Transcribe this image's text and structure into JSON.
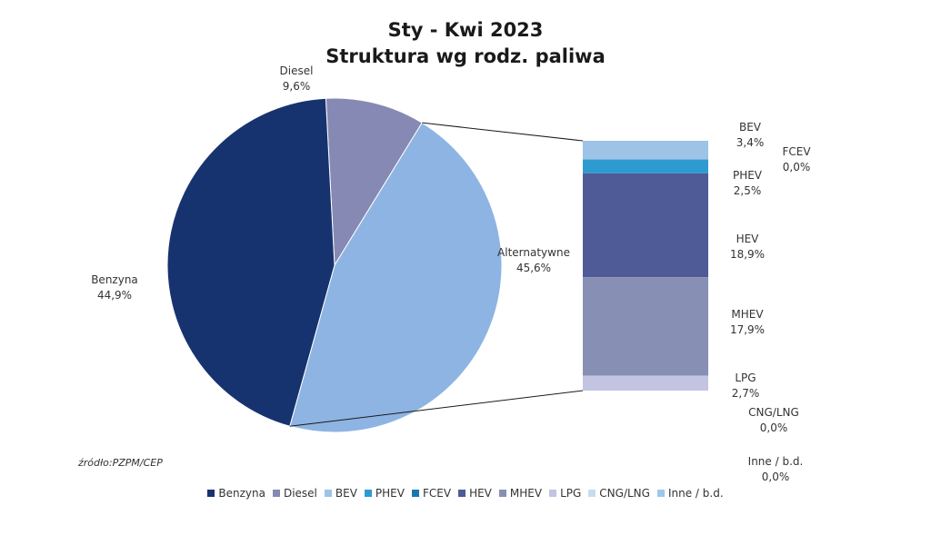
{
  "chart_data": {
    "type": "pie",
    "title": "Sty - Kwi 2023",
    "subtitle": "Struktura wg rodz. paliwa",
    "slices": [
      {
        "name": "Diesel",
        "value": 9.6,
        "label": "9,6%",
        "color": "#8589b3"
      },
      {
        "name": "Alternatywne",
        "value": 45.6,
        "label": "45,6%",
        "color": "#8db4e2"
      },
      {
        "name": "Benzyna",
        "value": 44.9,
        "label": "44,9%",
        "color": "#17336f"
      }
    ],
    "breakdown": {
      "of": "Alternatywne",
      "segments": [
        {
          "name": "BEV",
          "value": 3.4,
          "label": "3,4%",
          "color": "#9dc3e6"
        },
        {
          "name": "PHEV",
          "value": 2.5,
          "label": "2,5%",
          "color": "#2e9bd0"
        },
        {
          "name": "FCEV",
          "value": 0.0,
          "label": "0,0%",
          "color": "#1878ad"
        },
        {
          "name": "HEV",
          "value": 18.9,
          "label": "18,9%",
          "color": "#4e5b96"
        },
        {
          "name": "MHEV",
          "value": 17.9,
          "label": "17,9%",
          "color": "#8790b4"
        },
        {
          "name": "LPG",
          "value": 2.7,
          "label": "2,7%",
          "color": "#c3c3e2"
        },
        {
          "name": "CNG/LNG",
          "value": 0.0,
          "label": "0,0%",
          "color": "#c5dcef"
        },
        {
          "name": "Inne / b.d.",
          "value": 0.0,
          "label": "0,0%",
          "color": "#9ec7e8"
        }
      ]
    },
    "legend": {
      "position": "bottom",
      "entries": [
        {
          "name": "Benzyna",
          "color": "#17336f"
        },
        {
          "name": "Diesel",
          "color": "#8589b3"
        },
        {
          "name": "BEV",
          "color": "#9dc3e6"
        },
        {
          "name": "PHEV",
          "color": "#2e9bd0"
        },
        {
          "name": "FCEV",
          "color": "#1878ad"
        },
        {
          "name": "HEV",
          "color": "#4e5b96"
        },
        {
          "name": "MHEV",
          "color": "#8790b4"
        },
        {
          "name": "LPG",
          "color": "#c3c3e2"
        },
        {
          "name": "CNG/LNG",
          "color": "#c5dcef"
        },
        {
          "name": "Inne / b.d.",
          "color": "#9ec7e8"
        }
      ]
    },
    "source": "źródło:PZPM/CEP"
  }
}
